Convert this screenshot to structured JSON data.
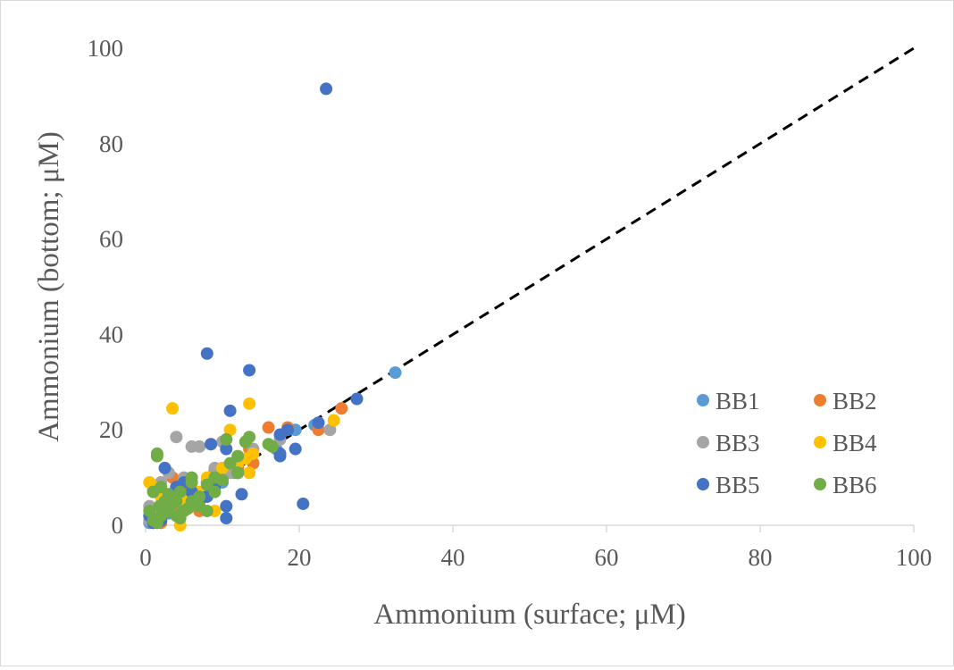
{
  "chart_data": {
    "type": "scatter",
    "xlabel": "Ammonium  (surface;  μM)",
    "ylabel": "Ammonium  (bottom;  μM)",
    "xlim": [
      0,
      100
    ],
    "ylim": [
      0,
      100
    ],
    "xticks": [
      "0",
      "20",
      "40",
      "60",
      "80",
      "100"
    ],
    "yticks": [
      "0",
      "20",
      "40",
      "60",
      "80",
      "100"
    ],
    "grid": false,
    "reference_line": {
      "style": "dashed",
      "color": "#000000",
      "from": [
        0,
        0
      ],
      "to": [
        100,
        100
      ]
    },
    "legend": {
      "placement": "bottom-right",
      "columns": 2
    },
    "series": [
      {
        "name": "BB1",
        "color": "#5b9bd5",
        "points": [
          [
            32.5,
            32
          ],
          [
            19.5,
            20
          ],
          [
            0.5,
            0.5
          ],
          [
            1,
            0.8
          ],
          [
            2,
            1.5
          ],
          [
            3,
            2.5
          ],
          [
            5,
            4
          ],
          [
            7,
            6
          ],
          [
            10,
            9
          ],
          [
            12,
            11
          ],
          [
            14,
            13
          ],
          [
            17,
            16
          ],
          [
            22,
            21
          ]
        ]
      },
      {
        "name": "BB2",
        "color": "#ed7d31",
        "points": [
          [
            25.5,
            24.5
          ],
          [
            16,
            20.5
          ],
          [
            22.5,
            20
          ],
          [
            18.5,
            20.5
          ],
          [
            13.5,
            16
          ],
          [
            8.5,
            17
          ],
          [
            11.5,
            11
          ],
          [
            9,
            11.5
          ],
          [
            7,
            3
          ],
          [
            4.5,
            2.5
          ],
          [
            3.5,
            10
          ],
          [
            2,
            0.5
          ],
          [
            3,
            6
          ],
          [
            5,
            7
          ],
          [
            6,
            5
          ],
          [
            8,
            9
          ],
          [
            10,
            10
          ],
          [
            12,
            12
          ],
          [
            14,
            13
          ],
          [
            1.5,
            1
          ],
          [
            2.5,
            3
          ]
        ]
      },
      {
        "name": "BB3",
        "color": "#a5a5a5",
        "points": [
          [
            24,
            20
          ],
          [
            17.5,
            18
          ],
          [
            14,
            16
          ],
          [
            10,
            17.5
          ],
          [
            7,
            16.5
          ],
          [
            6,
            16.5
          ],
          [
            4,
            18.5
          ],
          [
            1,
            7.5
          ],
          [
            0.5,
            4
          ],
          [
            0.5,
            1
          ],
          [
            2,
            9
          ],
          [
            3,
            11
          ],
          [
            4,
            8
          ],
          [
            5,
            10
          ],
          [
            6,
            7
          ],
          [
            8,
            9
          ],
          [
            9,
            12
          ],
          [
            11,
            11
          ],
          [
            3,
            4
          ],
          [
            2,
            2
          ]
        ]
      },
      {
        "name": "BB4",
        "color": "#ffc000",
        "points": [
          [
            3.5,
            24.5
          ],
          [
            13.5,
            25.5
          ],
          [
            24.5,
            22
          ],
          [
            11,
            20
          ],
          [
            13,
            14
          ],
          [
            13.5,
            11
          ],
          [
            10,
            12
          ],
          [
            8,
            10
          ],
          [
            6,
            9
          ],
          [
            5,
            5
          ],
          [
            4.5,
            0
          ],
          [
            0.5,
            9
          ],
          [
            1,
            8
          ],
          [
            2,
            6
          ],
          [
            3,
            5
          ],
          [
            7,
            7
          ],
          [
            9,
            3
          ],
          [
            12,
            13
          ],
          [
            14,
            15
          ],
          [
            5.5,
            5
          ],
          [
            2.5,
            3
          ]
        ]
      },
      {
        "name": "BB5",
        "color": "#4472c4",
        "points": [
          [
            23.5,
            91.5
          ],
          [
            8,
            36
          ],
          [
            13.5,
            32.5
          ],
          [
            11,
            24
          ],
          [
            27.5,
            26.5
          ],
          [
            22.5,
            21.5
          ],
          [
            18.5,
            20
          ],
          [
            17.5,
            19
          ],
          [
            17.5,
            15
          ],
          [
            17.5,
            14.5
          ],
          [
            19.5,
            16
          ],
          [
            20.5,
            4.5
          ],
          [
            12.5,
            6.5
          ],
          [
            10.5,
            1.5
          ],
          [
            10.5,
            4
          ],
          [
            10.5,
            16
          ],
          [
            8.5,
            17
          ],
          [
            2.5,
            12
          ],
          [
            4,
            8
          ],
          [
            5,
            9
          ],
          [
            6,
            7
          ],
          [
            7,
            5
          ],
          [
            8,
            6
          ],
          [
            9,
            8
          ],
          [
            3,
            3
          ],
          [
            2,
            1
          ],
          [
            1,
            0.5
          ],
          [
            12,
            11
          ],
          [
            0.5,
            2
          ]
        ]
      },
      {
        "name": "BB6",
        "color": "#70ad47",
        "points": [
          [
            1.5,
            15
          ],
          [
            1.5,
            14.5
          ],
          [
            10.5,
            18
          ],
          [
            13.5,
            18.5
          ],
          [
            13,
            17.5
          ],
          [
            16,
            17
          ],
          [
            16.5,
            16.5
          ],
          [
            12,
            14.5
          ],
          [
            11,
            13
          ],
          [
            12,
            11
          ],
          [
            9,
            10
          ],
          [
            6,
            10
          ],
          [
            6,
            9
          ],
          [
            9,
            7
          ],
          [
            7,
            6
          ],
          [
            1,
            7
          ],
          [
            0.5,
            3
          ],
          [
            1,
            1
          ],
          [
            1.5,
            0.5
          ],
          [
            2,
            2
          ],
          [
            2.5,
            5
          ],
          [
            3,
            6.5
          ],
          [
            3.5,
            4.5
          ],
          [
            4,
            2
          ],
          [
            4.5,
            1.5
          ],
          [
            5,
            3
          ],
          [
            5.5,
            3.5
          ],
          [
            7,
            4
          ],
          [
            8,
            8.5
          ],
          [
            10,
            9.5
          ],
          [
            2,
            8
          ],
          [
            3,
            3
          ],
          [
            4,
            5
          ],
          [
            6,
            5
          ],
          [
            8,
            3
          ],
          [
            1.8,
            4
          ],
          [
            4.5,
            7
          ]
        ]
      }
    ]
  }
}
